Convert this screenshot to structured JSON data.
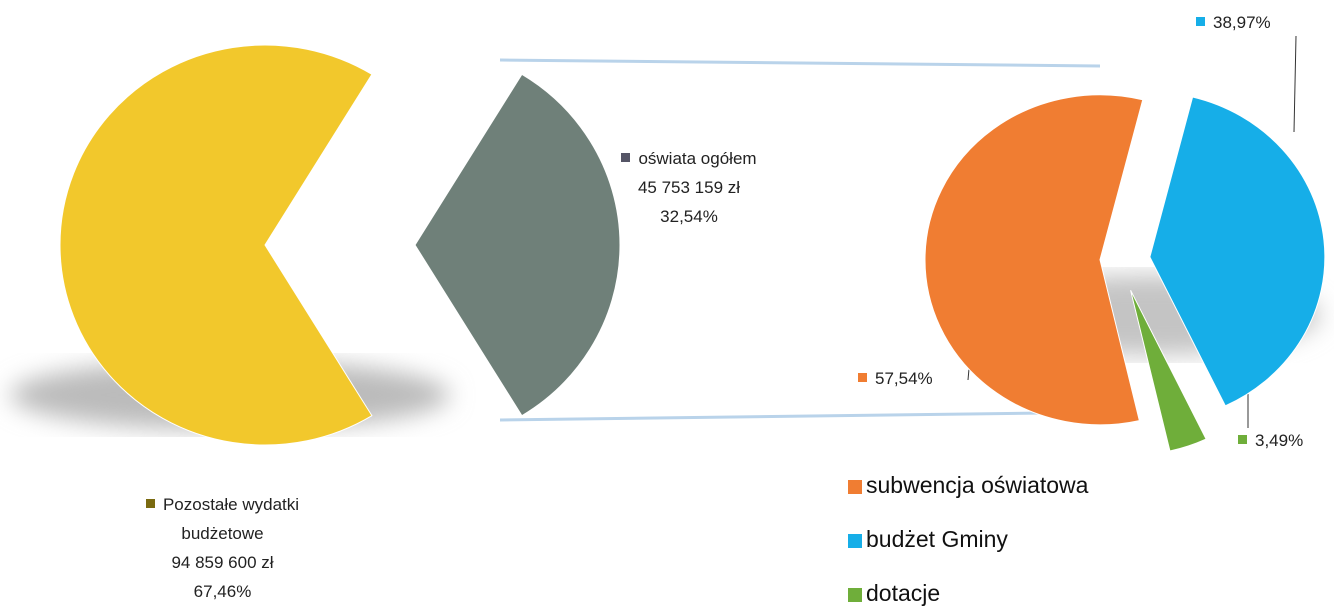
{
  "chart_data": [
    {
      "type": "pie",
      "categories": [
        "Pozostałe wydatki budżetowe",
        "oświata ogółem"
      ],
      "values": [
        67.46,
        32.54
      ],
      "value_labels": [
        "67,46%",
        "32,54%"
      ],
      "amounts": [
        94859600,
        45753159
      ],
      "amount_labels": [
        "94 859 600 zł",
        "45 753 159 zł"
      ],
      "colors": [
        "#f2c82c",
        "#6f8079"
      ]
    },
    {
      "type": "pie",
      "categories": [
        "subwencja oświatowa",
        "budżet Gminy",
        "dotacje"
      ],
      "values": [
        57.54,
        38.97,
        3.49
      ],
      "value_labels": [
        "57,54%",
        "38,97%",
        "3,49%"
      ],
      "colors": [
        "#f07d32",
        "#16aee8",
        "#6fae3a"
      ]
    }
  ]
}
